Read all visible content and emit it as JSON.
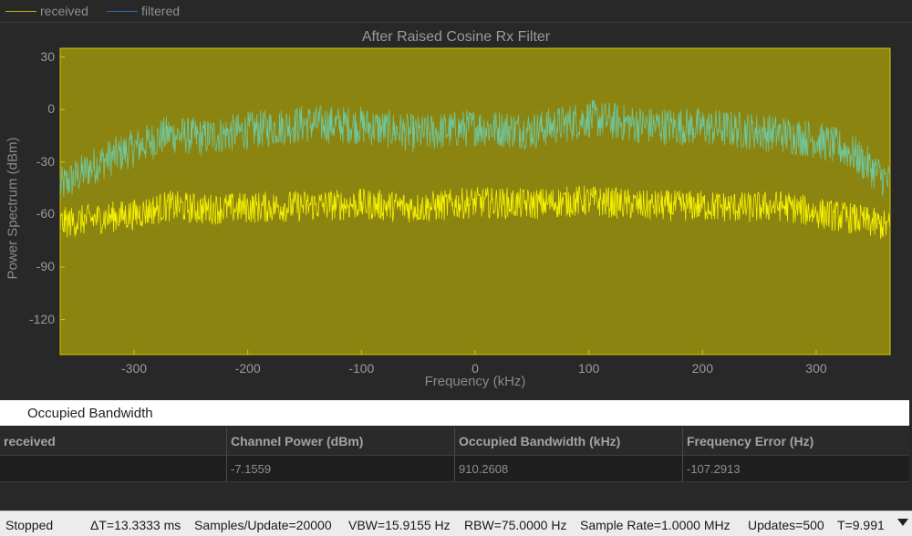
{
  "legend": {
    "items": [
      {
        "label": "received",
        "color": "#c8b400"
      },
      {
        "label": "filtered",
        "color": "#2f6fb0"
      }
    ]
  },
  "chart_data": {
    "type": "line",
    "title": "After Raised Cosine Rx Filter",
    "xlabel": "Frequency (kHz)",
    "ylabel": "Power Spectrum (dBm)",
    "xlim": [
      -365,
      365
    ],
    "ylim": [
      -140,
      35
    ],
    "yticks": [
      30,
      0,
      -30,
      -60,
      -90,
      -120
    ],
    "xticks": [
      -300,
      -200,
      -100,
      0,
      100,
      200,
      300
    ],
    "grid": false,
    "background": "#8c8410",
    "series": [
      {
        "name": "received",
        "color": "#f5f000",
        "x": [
          -365,
          -330,
          -300,
          -270,
          -240,
          -200,
          -150,
          -100,
          -50,
          0,
          50,
          100,
          150,
          200,
          240,
          270,
          300,
          330,
          365
        ],
        "values": [
          -65,
          -62,
          -60,
          -55,
          -57,
          -56,
          -55,
          -54,
          -56,
          -53,
          -54,
          -52,
          -55,
          -55,
          -56,
          -55,
          -59,
          -62,
          -67
        ]
      },
      {
        "name": "filtered",
        "color": "#6fc8a0",
        "x": [
          -365,
          -330,
          -300,
          -270,
          -240,
          -200,
          -150,
          -100,
          -50,
          0,
          50,
          100,
          150,
          200,
          240,
          270,
          300,
          330,
          365
        ],
        "values": [
          -44,
          -30,
          -22,
          -14,
          -16,
          -12,
          -8,
          -9,
          -14,
          -10,
          -12,
          -5,
          -9,
          -10,
          -12,
          -14,
          -17,
          -24,
          -42
        ]
      }
    ]
  },
  "panel": {
    "title": "Occupied Bandwidth",
    "columns": [
      "received",
      "Channel Power (dBm)",
      "Occupied Bandwidth (kHz)",
      "Frequency Error (Hz)"
    ],
    "rows": [
      [
        "",
        "-7.1559",
        "910.2608",
        "-107.2913"
      ]
    ]
  },
  "status": {
    "state": "Stopped",
    "delta_t": "ΔT=13.3333 ms",
    "samples": "Samples/Update=20000",
    "vbw": "VBW=15.9155 Hz",
    "rbw": "RBW=75.0000 Hz",
    "sample_rate": "Sample Rate=1.0000 MHz",
    "updates": "Updates=500",
    "time": "T=9.991"
  }
}
